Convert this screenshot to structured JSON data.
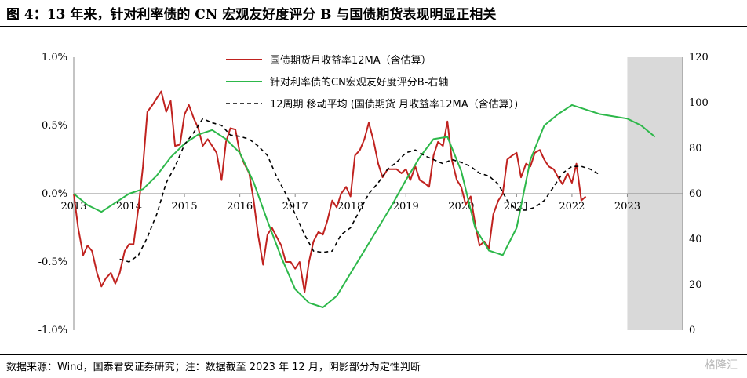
{
  "title": "图 4：13 年来，针对利率债的 CN 宏观友好度评分 B 与国债期货表现明显正相关",
  "source": "数据来源：Wind，国泰君安证券研究；注：数据截至 2023 年 12 月，阴影部分为定性判断",
  "watermark": "格隆汇",
  "colors": {
    "red": "#c0221f",
    "green": "#2db84a",
    "black": "#000000",
    "shade": "#d9d9d9"
  },
  "chart_data": {
    "type": "line",
    "x_ticks": [
      "2013",
      "2014",
      "2015",
      "2016",
      "2017",
      "2018",
      "2019",
      "2020",
      "2021",
      "2022",
      "2023"
    ],
    "xlim": [
      2013.0,
      2024.0
    ],
    "ylim_left": [
      -1.0,
      1.0
    ],
    "yticks_left": [
      "1.0%",
      "0.5%",
      "0.0%",
      "-0.5%",
      "-1.0%"
    ],
    "ylim_right": [
      0,
      120
    ],
    "yticks_right": [
      "120",
      "100",
      "80",
      "60",
      "40",
      "20",
      "0"
    ],
    "shaded_region": [
      2023.0,
      2024.0
    ],
    "legend_position": "top-center",
    "series": [
      {
        "name": "国债期货月收益率12MA（含估算）",
        "axis": "left",
        "color": "#c0221f",
        "style": "solid",
        "x": [
          2013.0,
          2013.08,
          2013.17,
          2013.25,
          2013.33,
          2013.42,
          2013.5,
          2013.58,
          2013.67,
          2013.75,
          2013.83,
          2013.92,
          2014.0,
          2014.08,
          2014.17,
          2014.25,
          2014.33,
          2014.42,
          2014.5,
          2014.58,
          2014.67,
          2014.75,
          2014.83,
          2014.92,
          2015.0,
          2015.08,
          2015.17,
          2015.25,
          2015.33,
          2015.42,
          2015.5,
          2015.58,
          2015.67,
          2015.75,
          2015.83,
          2015.92,
          2016.0,
          2016.08,
          2016.17,
          2016.25,
          2016.33,
          2016.42,
          2016.5,
          2016.58,
          2016.67,
          2016.75,
          2016.83,
          2016.92,
          2017.0,
          2017.08,
          2017.17,
          2017.25,
          2017.33,
          2017.42,
          2017.5,
          2017.58,
          2017.67,
          2017.75,
          2017.83,
          2017.92,
          2018.0,
          2018.08,
          2018.17,
          2018.25,
          2018.33,
          2018.42,
          2018.5,
          2018.58,
          2018.67,
          2018.75,
          2018.83,
          2018.92,
          2019.0,
          2019.08,
          2019.17,
          2019.25,
          2019.33,
          2019.42,
          2019.5,
          2019.58,
          2019.67,
          2019.75,
          2019.83,
          2019.92,
          2020.0,
          2020.08,
          2020.17,
          2020.25,
          2020.33,
          2020.42,
          2020.5,
          2020.58,
          2020.67,
          2020.75,
          2020.83,
          2020.92,
          2021.0,
          2021.08,
          2021.17,
          2021.25,
          2021.33,
          2021.42,
          2021.5,
          2021.58,
          2021.67,
          2021.75,
          2021.83,
          2021.92,
          2022.0,
          2022.08,
          2022.17,
          2022.25,
          2022.33,
          2022.42,
          2022.5,
          2022.58,
          2022.67
        ],
        "y": [
          0.0,
          -0.25,
          -0.45,
          -0.38,
          -0.42,
          -0.58,
          -0.68,
          -0.62,
          -0.58,
          -0.66,
          -0.58,
          -0.42,
          -0.37,
          -0.37,
          -0.1,
          0.2,
          0.6,
          0.65,
          0.7,
          0.75,
          0.6,
          0.68,
          0.35,
          0.36,
          0.58,
          0.65,
          0.55,
          0.48,
          0.35,
          0.4,
          0.35,
          0.3,
          0.1,
          0.38,
          0.48,
          0.47,
          0.3,
          0.22,
          0.15,
          -0.05,
          -0.3,
          -0.52,
          -0.3,
          -0.25,
          -0.32,
          -0.38,
          -0.5,
          -0.5,
          -0.55,
          -0.5,
          -0.72,
          -0.5,
          -0.35,
          -0.28,
          -0.3,
          -0.2,
          -0.05,
          -0.1,
          0.0,
          0.05,
          -0.02,
          0.28,
          0.32,
          0.4,
          0.52,
          0.38,
          0.22,
          0.12,
          0.18,
          0.18,
          0.18,
          0.15,
          0.18,
          0.1,
          0.2,
          0.1,
          0.08,
          0.05,
          0.28,
          0.38,
          0.35,
          0.53,
          0.25,
          0.1,
          0.05,
          -0.08,
          -0.02,
          -0.22,
          -0.38,
          -0.35,
          -0.4,
          -0.15,
          -0.05,
          0.0,
          0.25,
          0.28,
          0.3,
          0.12,
          0.22,
          0.2,
          0.3,
          0.32,
          0.25,
          0.2,
          0.18,
          0.12,
          0.07,
          0.15,
          0.08,
          0.22,
          -0.05,
          -0.02,
          null,
          null,
          null,
          null,
          null
        ],
        "note": "x values approximate monthly"
      },
      {
        "name": "针对利率债的CN宏观友好度评分B-右轴",
        "axis": "right",
        "color": "#2db84a",
        "style": "solid",
        "x": [
          2013.0,
          2013.25,
          2013.5,
          2013.75,
          2014.0,
          2014.25,
          2014.5,
          2014.75,
          2015.0,
          2015.25,
          2015.5,
          2015.75,
          2016.0,
          2016.25,
          2016.5,
          2016.75,
          2017.0,
          2017.25,
          2017.5,
          2017.75,
          2018.0,
          2018.25,
          2018.5,
          2018.75,
          2019.0,
          2019.25,
          2019.5,
          2019.75,
          2020.0,
          2020.25,
          2020.5,
          2020.75,
          2021.0,
          2021.25,
          2021.5,
          2021.75,
          2022.0,
          2022.25,
          2022.5,
          2022.75,
          2023.0,
          2023.25,
          2023.5
        ],
        "y": [
          60,
          55,
          52,
          56,
          60,
          62,
          68,
          76,
          82,
          86,
          88,
          84,
          78,
          65,
          48,
          32,
          18,
          12,
          10,
          15,
          25,
          35,
          45,
          55,
          66,
          76,
          84,
          85,
          70,
          45,
          35,
          33,
          45,
          75,
          90,
          95,
          99,
          97,
          95,
          94,
          93,
          90,
          85
        ]
      },
      {
        "name": "12周期 移动平均 (国债期货 月收益率12MA（含估算）)",
        "axis": "left",
        "color": "#000000",
        "style": "dashed",
        "x": [
          2013.83,
          2014.0,
          2014.17,
          2014.33,
          2014.5,
          2014.67,
          2014.83,
          2015.0,
          2015.17,
          2015.33,
          2015.5,
          2015.67,
          2015.83,
          2016.0,
          2016.17,
          2016.33,
          2016.5,
          2016.67,
          2016.83,
          2017.0,
          2017.17,
          2017.33,
          2017.5,
          2017.67,
          2017.83,
          2018.0,
          2018.17,
          2018.33,
          2018.5,
          2018.67,
          2018.83,
          2019.0,
          2019.17,
          2019.33,
          2019.5,
          2019.67,
          2019.83,
          2020.0,
          2020.17,
          2020.33,
          2020.5,
          2020.67,
          2020.83,
          2021.0,
          2021.17,
          2021.33,
          2021.5,
          2021.67,
          2021.83,
          2022.0,
          2022.17,
          2022.33,
          2022.5
        ],
        "y": [
          -0.48,
          -0.5,
          -0.45,
          -0.32,
          -0.15,
          0.08,
          0.2,
          0.36,
          0.45,
          0.55,
          0.52,
          0.5,
          0.43,
          0.42,
          0.4,
          0.35,
          0.28,
          0.12,
          0.0,
          -0.15,
          -0.3,
          -0.42,
          -0.43,
          -0.42,
          -0.3,
          -0.25,
          -0.12,
          0.0,
          0.08,
          0.18,
          0.23,
          0.3,
          0.32,
          0.28,
          0.25,
          0.22,
          0.25,
          0.23,
          0.2,
          0.15,
          0.13,
          0.07,
          -0.05,
          -0.12,
          -0.12,
          -0.1,
          -0.05,
          0.05,
          0.15,
          0.2,
          0.2,
          0.18,
          0.14
        ]
      }
    ]
  }
}
